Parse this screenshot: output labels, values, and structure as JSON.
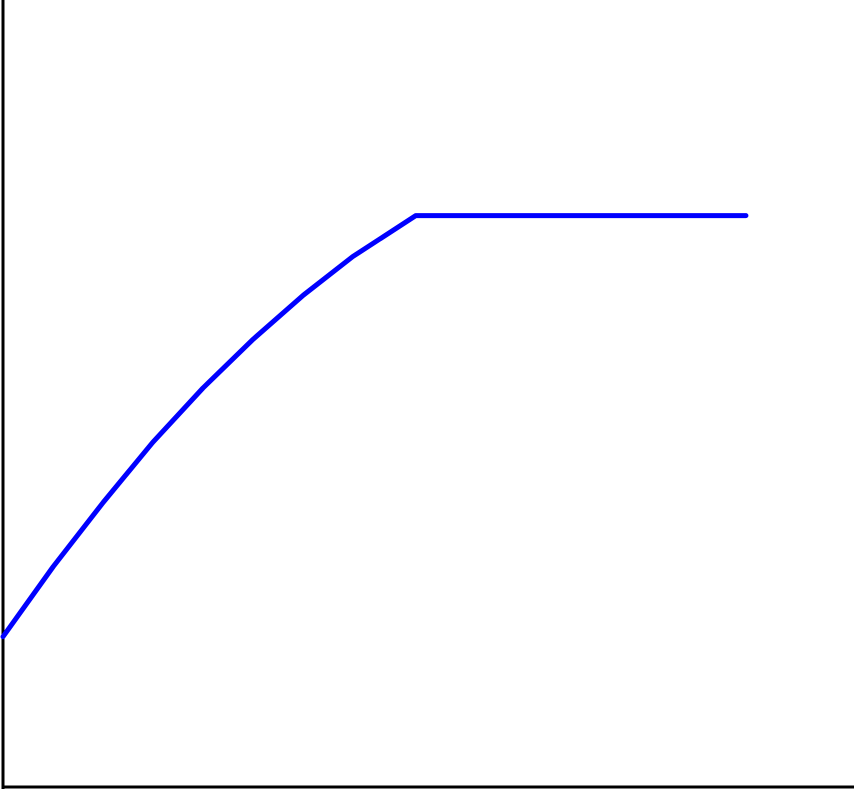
{
  "chart_data": {
    "type": "line",
    "x": [
      0,
      5.9,
      11.8,
      17.6,
      23.5,
      29.4,
      35.3,
      41.1,
      48.5,
      87.3
    ],
    "series": [
      {
        "color": "#0000ff",
        "values": [
          19.1,
          28.0,
          36.2,
          43.8,
          50.7,
          56.9,
          62.5,
          67.4,
          72.6,
          72.6
        ]
      }
    ],
    "xlim": [
      0,
      100
    ],
    "ylim": [
      0,
      100
    ]
  }
}
